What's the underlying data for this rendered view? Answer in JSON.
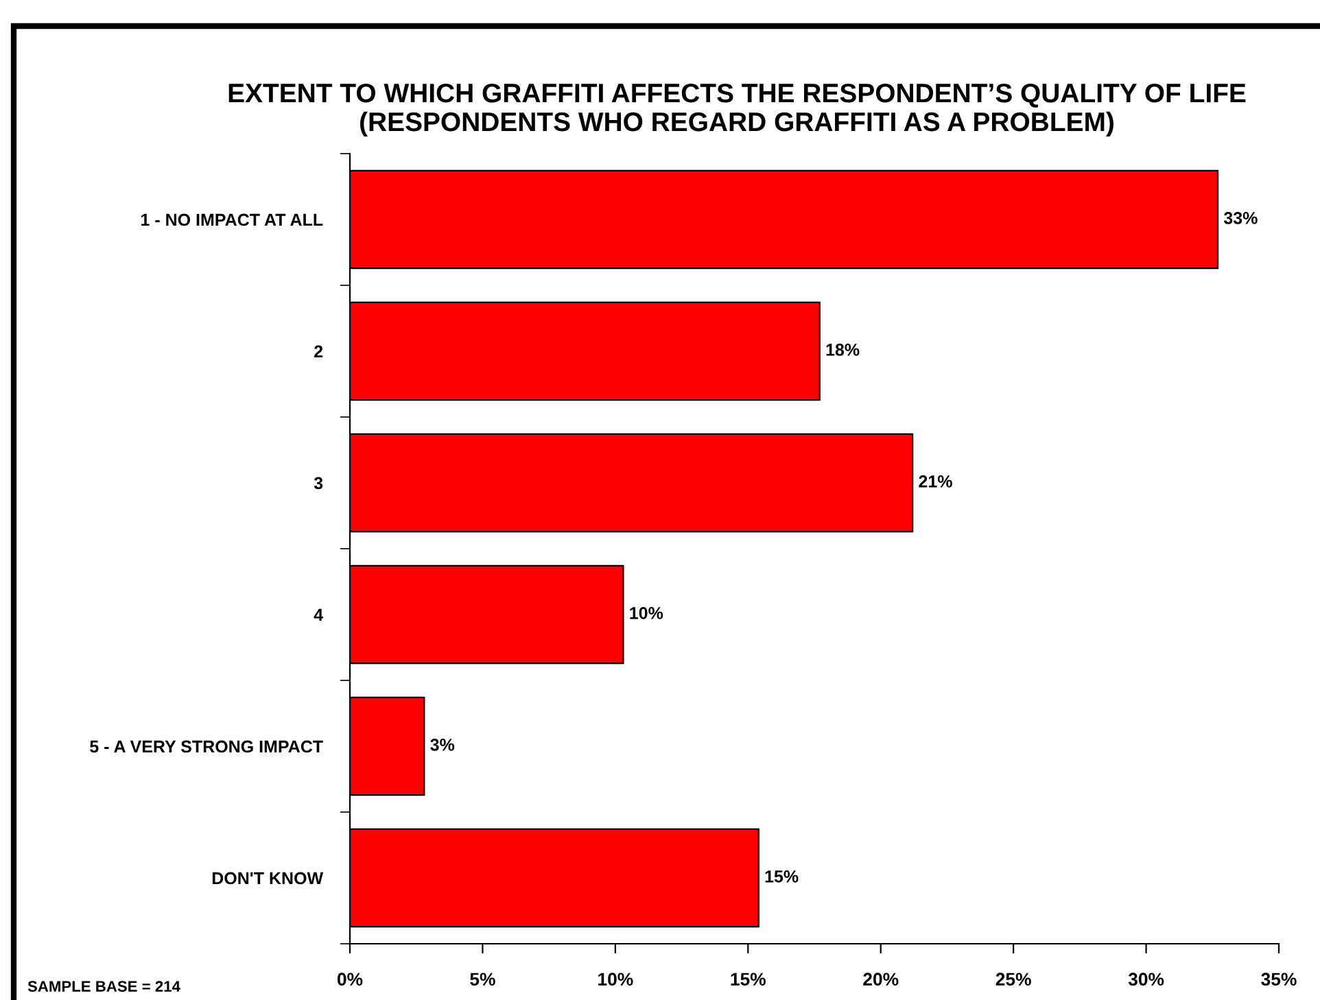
{
  "chart_data": {
    "type": "bar",
    "orientation": "horizontal",
    "title": "EXTENT TO WHICH GRAFFITI AFFECTS THE RESPONDENT’S QUALITY OF LIFE\n(RESPONDENTS WHO REGARD GRAFFITI AS A PROBLEM)",
    "categories": [
      "1 - NO IMPACT AT ALL",
      "2",
      "3",
      "4",
      "5 - A VERY STRONG IMPACT",
      "DON'T KNOW"
    ],
    "values": [
      32.7,
      17.7,
      21.2,
      10.3,
      2.8,
      15.4
    ],
    "value_labels": [
      "33%",
      "18%",
      "21%",
      "10%",
      "3%",
      "15%"
    ],
    "color": "#ff0000",
    "xlim": [
      0,
      35
    ],
    "xticks": [
      {
        "value": 0,
        "label": "0%"
      },
      {
        "value": 5,
        "label": "5%"
      },
      {
        "value": 10,
        "label": "10%"
      },
      {
        "value": 15,
        "label": "15%"
      },
      {
        "value": 20,
        "label": "20%"
      },
      {
        "value": 25,
        "label": "25%"
      },
      {
        "value": 30,
        "label": "30%"
      },
      {
        "value": 35,
        "label": "35%"
      }
    ],
    "grid": false,
    "legend": false,
    "annotations": [
      "SAMPLE BASE = 214"
    ]
  }
}
